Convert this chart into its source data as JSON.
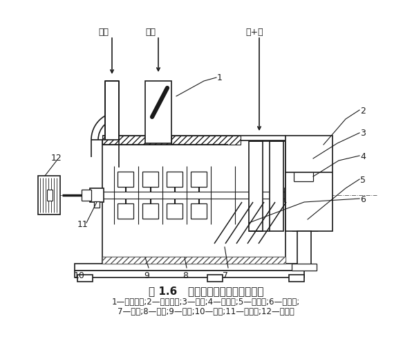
{
  "title": "图 1.6   风选锤式粉碎机结构原理图",
  "caption_line1": "1—进料插板;2—风机外壳;3—风叶;4—调风阀;5—截锥体;6—挡料棒;",
  "caption_line2": "7—锤头;8—内衬;9—机壳;10—机架;11—轴承座;12—皮带轮",
  "bg_color": "#ffffff",
  "lc": "#1a1a1a",
  "lw": 1.2,
  "labels": {
    "huifeng": "回风",
    "wuliao": "物料",
    "fengjiafen": "风+粉",
    "1": "1",
    "2": "2",
    "3": "3",
    "4": "4",
    "5": "5",
    "6": "6",
    "7": "7",
    "8": "8",
    "9": "9",
    "10": "10",
    "11": "11",
    "12": "12"
  },
  "figsize": [
    5.96,
    4.87
  ],
  "dpi": 100
}
